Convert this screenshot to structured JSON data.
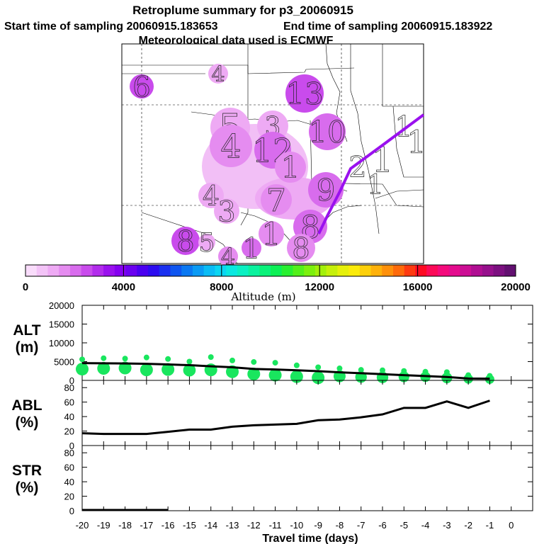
{
  "header": {
    "title": "Retroplume summary for p3_20060915",
    "start_label": "Start time of sampling 20060915.183653",
    "end_label": "End time of sampling 20060915.183922",
    "met_label": "Meteorological data used is ECMWF"
  },
  "colorbar": {
    "label": "Altitude (m)",
    "ticks": [
      "0",
      "4000",
      "8000",
      "12000",
      "16000",
      "20000"
    ],
    "colors": [
      "#f9dcfb",
      "#f3c3f7",
      "#eeaaf4",
      "#e58cf0",
      "#d86ced",
      "#c94bec",
      "#b22cec",
      "#9a11ee",
      "#8500f0",
      "#6a00f0",
      "#4a00f0",
      "#2c0cf0",
      "#1a30f0",
      "#0e55f0",
      "#0a78f2",
      "#0a9af4",
      "#0abcf5",
      "#0ad6f2",
      "#0ae8e0",
      "#0af0c2",
      "#0af29e",
      "#0af27a",
      "#0cf055",
      "#28f030",
      "#52f01a",
      "#7cf00e",
      "#a2f00a",
      "#c6f00a",
      "#e6f00a",
      "#fbeb0a",
      "#fdd00a",
      "#feb10a",
      "#fe900a",
      "#fe6a0a",
      "#fe3a10",
      "#fe0a22",
      "#fc0a58",
      "#f40a7c",
      "#e40c8e",
      "#cc0e94",
      "#b00e92",
      "#96108c",
      "#7c1080",
      "#621070"
    ]
  },
  "map_panel": {
    "markers": [
      {
        "label": "6",
        "color": "#c94bec"
      },
      {
        "label": "4",
        "color": "#eeaaf4"
      },
      {
        "label": "13",
        "color": "#c94bec"
      },
      {
        "label": "5",
        "color": "#eeaaf4"
      },
      {
        "label": "3",
        "color": "#eeaaf4"
      },
      {
        "label": "10",
        "color": "#d86ced"
      },
      {
        "label": "4",
        "color": "#e58cf0"
      },
      {
        "label": "12",
        "color": "#d86ced"
      },
      {
        "label": "1",
        "color": "#e58cf0"
      },
      {
        "label": "9",
        "color": "#d86ced"
      },
      {
        "label": "4",
        "color": "#eeaaf4"
      },
      {
        "label": "3",
        "color": "#eeaaf4"
      },
      {
        "label": "7",
        "color": "#e58cf0"
      },
      {
        "label": "8",
        "color": "#d86ced"
      },
      {
        "label": "8",
        "color": "#c94bec"
      },
      {
        "label": "5",
        "color": "#eeaaf4"
      },
      {
        "label": "8",
        "color": "#e58cf0"
      },
      {
        "label": "4",
        "color": "#e58cf0"
      },
      {
        "label": "1",
        "color": "#d86ced"
      },
      {
        "label": "1",
        "color": "#e58cf0"
      }
    ],
    "text_marks": [
      {
        "label": "1"
      },
      {
        "label": "1"
      },
      {
        "label": "1"
      },
      {
        "label": "2"
      },
      {
        "label": "1"
      }
    ],
    "trajectory_color": "#9a11ee"
  },
  "chart_data": [
    {
      "type": "line",
      "title": "",
      "ylabel": "ALT\n(m)",
      "ylabel_lines": [
        "ALT",
        "(m)"
      ],
      "ylim": [
        0,
        20000
      ],
      "yticks": [
        "20000",
        "15000",
        "10000",
        "5000",
        "0"
      ],
      "x": [
        -20,
        -19,
        -18,
        -17,
        -16,
        -15,
        -14,
        -13,
        -12,
        -11,
        -10,
        -9,
        -8,
        -7,
        -6,
        -5,
        -4,
        -3,
        -2,
        -1
      ],
      "series": [
        {
          "name": "mean altitude",
          "color": "#000000",
          "values": [
            4600,
            4550,
            4500,
            4400,
            4250,
            4050,
            3750,
            3500,
            3050,
            2900,
            2700,
            2450,
            2150,
            1900,
            1650,
            1400,
            1150,
            900,
            500,
            450
          ]
        },
        {
          "name": "altitude spread",
          "color": "#19e65e",
          "top": [
            5600,
            5900,
            5800,
            6100,
            5700,
            5000,
            6200,
            5300,
            4900,
            4700,
            4000,
            3500,
            3200,
            2800,
            2700,
            2500,
            2300,
            2200,
            1400,
            1200
          ],
          "bottom": [
            3000,
            3200,
            3300,
            2800,
            2900,
            2700,
            2800,
            2300,
            1700,
            1400,
            1000,
            700,
            1100,
            900,
            800,
            950,
            950,
            650,
            400,
            300
          ]
        }
      ]
    },
    {
      "type": "line",
      "ylabel": "ABL\n(%)",
      "ylabel_lines": [
        "ABL",
        "(%)"
      ],
      "ylim": [
        0,
        90
      ],
      "yticks": [
        "80",
        "60",
        "40",
        "20",
        "0"
      ],
      "x": [
        -20,
        -19,
        -18,
        -17,
        -16,
        -15,
        -14,
        -13,
        -12,
        -11,
        -10,
        -9,
        -8,
        -7,
        -6,
        -5,
        -4,
        -3,
        -2,
        -1
      ],
      "series": [
        {
          "name": "ABL fraction",
          "color": "#000000",
          "values": [
            17,
            16,
            16,
            16,
            19,
            22,
            22,
            26,
            28,
            29,
            30,
            35,
            36,
            39,
            43,
            52,
            52,
            61,
            52,
            62
          ]
        }
      ]
    },
    {
      "type": "line",
      "ylabel": "STR\n(%)",
      "ylabel_lines": [
        "STR",
        "(%)"
      ],
      "ylim": [
        0,
        90
      ],
      "yticks": [
        "80",
        "60",
        "40",
        "20",
        "0"
      ],
      "x": [
        -20,
        -19,
        -18,
        -17,
        -16
      ],
      "series": [
        {
          "name": "stratosphere fraction",
          "color": "#000000",
          "values": [
            1,
            1,
            1,
            1,
            1
          ]
        }
      ]
    }
  ],
  "x_axis": {
    "label": "Travel time (days)",
    "ticks": [
      "-20",
      "-19",
      "-18",
      "-17",
      "-16",
      "-15",
      "-14",
      "-13",
      "-12",
      "-11",
      "-10",
      "-9",
      "-8",
      "-7",
      "-6",
      "-5",
      "-4",
      "-3",
      "-2",
      "-1",
      "0"
    ]
  }
}
